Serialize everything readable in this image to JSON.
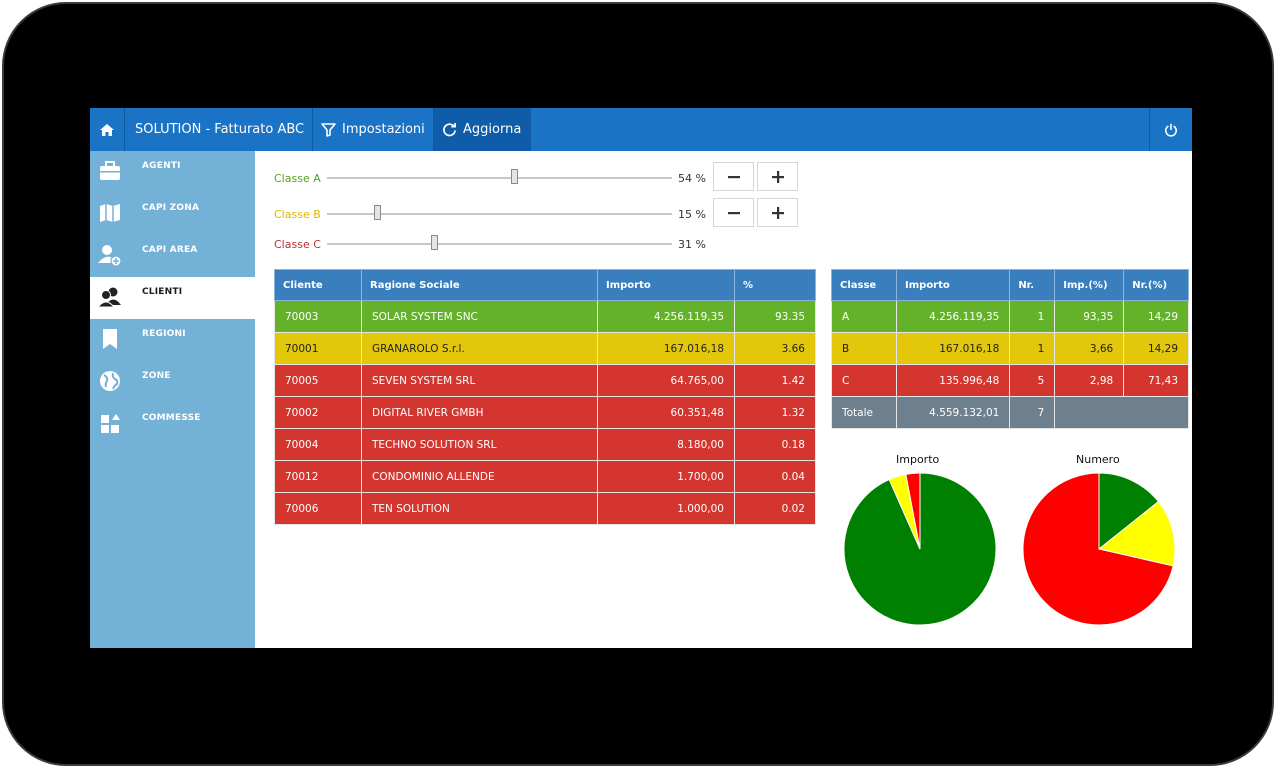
{
  "topbar": {
    "title": "SOLUTION - Fatturato ABC",
    "impostazioni_label": "Impostazioni",
    "aggiorna_label": "Aggiorna"
  },
  "sidebar": {
    "items": [
      {
        "label": "AGENTI",
        "icon": "briefcase-icon"
      },
      {
        "label": "CAPI ZONA",
        "icon": "map-icon"
      },
      {
        "label": "CAPI AREA",
        "icon": "add-user-icon"
      },
      {
        "label": "CLIENTI",
        "icon": "users-icon",
        "active": true
      },
      {
        "label": "REGIONI",
        "icon": "bookmark-icon"
      },
      {
        "label": "ZONE",
        "icon": "globe-icon"
      },
      {
        "label": "COMMESSE",
        "icon": "grid-icon"
      }
    ]
  },
  "sliders": [
    {
      "label": "Classe A",
      "value_text": "54 %",
      "value": 54,
      "color": "#5a9e22"
    },
    {
      "label": "Classe B",
      "value_text": "15 %",
      "value": 15,
      "color": "#d9b800"
    },
    {
      "label": "Classe C",
      "value_text": "31 %",
      "value": 31,
      "color": "#c03030"
    }
  ],
  "clients_table": {
    "headers": [
      "Cliente",
      "Ragione Sociale",
      "Importo",
      "%"
    ],
    "rows": [
      {
        "cliente": "70003",
        "ragione": "SOLAR SYSTEM SNC",
        "importo": "4.256.119,35",
        "pct": "93.35",
        "cls": "green"
      },
      {
        "cliente": "70001",
        "ragione": "GRANAROLO S.r.l.",
        "importo": "167.016,18",
        "pct": "3.66",
        "cls": "yellow"
      },
      {
        "cliente": "70005",
        "ragione": "SEVEN SYSTEM SRL",
        "importo": "64.765,00",
        "pct": "1.42",
        "cls": "red"
      },
      {
        "cliente": "70002",
        "ragione": "DIGITAL RIVER GMBH",
        "importo": "60.351,48",
        "pct": "1.32",
        "cls": "red"
      },
      {
        "cliente": "70004",
        "ragione": "TECHNO SOLUTION SRL",
        "importo": "8.180,00",
        "pct": "0.18",
        "cls": "red"
      },
      {
        "cliente": "70012",
        "ragione": "CONDOMINIO ALLENDE",
        "importo": "1.700,00",
        "pct": "0.04",
        "cls": "red"
      },
      {
        "cliente": "70006",
        "ragione": "TEN SOLUTION",
        "importo": "1.000,00",
        "pct": "0.02",
        "cls": "red"
      }
    ]
  },
  "summary_table": {
    "headers": [
      "Classe",
      "Importo",
      "Nr.",
      "Imp.(%)",
      "Nr.(%)"
    ],
    "rows": [
      {
        "classe": "A",
        "importo": "4.256.119,35",
        "nr": "1",
        "imp_pct": "93,35",
        "nr_pct": "14,29",
        "cls": "green"
      },
      {
        "classe": "B",
        "importo": "167.016,18",
        "nr": "1",
        "imp_pct": "3,66",
        "nr_pct": "14,29",
        "cls": "yellow"
      },
      {
        "classe": "C",
        "importo": "135.996,48",
        "nr": "5",
        "imp_pct": "2,98",
        "nr_pct": "71,43",
        "cls": "red"
      }
    ],
    "total": {
      "label": "Totale",
      "importo": "4.559.132,01",
      "nr": "7"
    }
  },
  "chart_data": [
    {
      "type": "pie",
      "title": "Importo",
      "categories": [
        "A",
        "B",
        "C"
      ],
      "values": [
        93.35,
        3.66,
        2.98
      ],
      "colors": [
        "#008000",
        "#ffff00",
        "#ff0000"
      ]
    },
    {
      "type": "pie",
      "title": "Numero",
      "categories": [
        "A",
        "B",
        "C"
      ],
      "values": [
        14.29,
        14.29,
        71.43
      ],
      "colors": [
        "#008000",
        "#ffff00",
        "#ff0000"
      ]
    }
  ]
}
